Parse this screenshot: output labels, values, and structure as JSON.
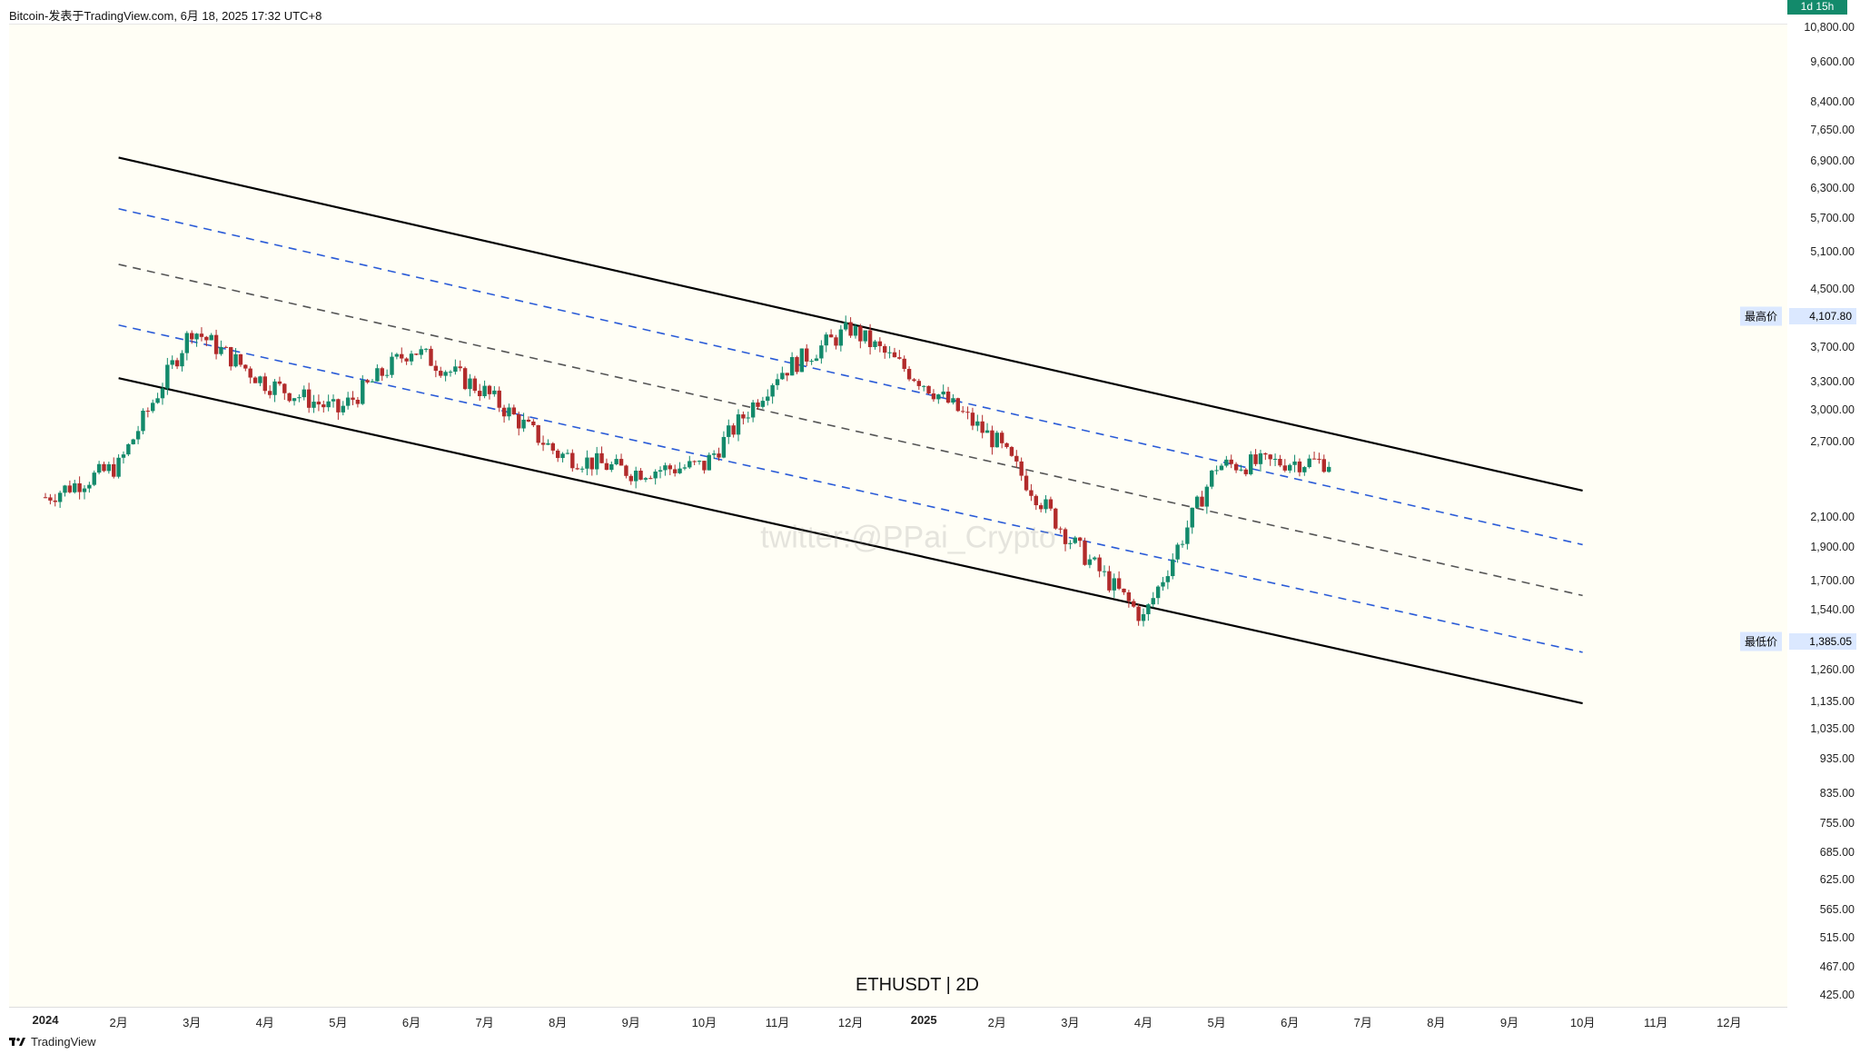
{
  "header": {
    "text": "Bitcoin-发表于TradingView.com, 6月 18, 2025 17:32 UTC+8"
  },
  "footer": {
    "logo_text": "TradingView"
  },
  "overlay": {
    "symbol": "ETHUSDT | 2D",
    "timestamp": "2025/6/18 17:32",
    "watermark": "twitter:@PPai_Crypto"
  },
  "colors": {
    "up": "#138a6b",
    "down": "#b22b2b",
    "channel": "#000000",
    "inner_band": "#2a5bd7",
    "median": "#555555",
    "background": "#fffef5"
  },
  "chart_data": {
    "type": "candlestick",
    "symbol": "ETHUSDT",
    "timeframe": "2D",
    "y_scale": "log",
    "y_ticks": [
      "10,800.00",
      "9,600.00",
      "8,400.00",
      "7,650.00",
      "6,900.00",
      "6,300.00",
      "5,700.00",
      "5,100.00",
      "4,500.00",
      "3,700.00",
      "3,300.00",
      "3,000.00",
      "2,700.00",
      "2,100.00",
      "1,900.00",
      "1,700.00",
      "1,540.00",
      "1,260.00",
      "1,135.00",
      "1,035.00",
      "935.00",
      "835.00",
      "755.00",
      "685.00",
      "625.00",
      "565.00",
      "515.00",
      "467.00",
      "425.00"
    ],
    "x_labels": [
      "2024",
      "2月",
      "3月",
      "4月",
      "5月",
      "6月",
      "7月",
      "8月",
      "9月",
      "10月",
      "11月",
      "12月",
      "2025",
      "2月",
      "3月",
      "4月",
      "5月",
      "6月",
      "7月",
      "8月",
      "9月",
      "10月",
      "11月",
      "12月"
    ],
    "x_major_labels": [
      "2024",
      "2025"
    ],
    "highest": {
      "label": "最高价",
      "value": "4,107.80"
    },
    "lowest": {
      "label": "最低价",
      "value": "1,385.05"
    },
    "current": {
      "value": "2,532.72",
      "countdown": "1d 15h"
    },
    "series": [
      {
        "label_date": "2024-01",
        "price": 2250
      },
      {
        "label_date": "2024-02",
        "price": 2500
      },
      {
        "label_date": "2024-03",
        "price": 3950
      },
      {
        "label_date": "2024-04",
        "price": 3300
      },
      {
        "label_date": "2024-05",
        "price": 3000
      },
      {
        "label_date": "2024-06",
        "price": 3700
      },
      {
        "label_date": "2024-07",
        "price": 3200
      },
      {
        "label_date": "2024-08",
        "price": 2600
      },
      {
        "label_date": "2024-09",
        "price": 2450
      },
      {
        "label_date": "2024-10",
        "price": 2500
      },
      {
        "label_date": "2024-11",
        "price": 3400
      },
      {
        "label_date": "2024-12",
        "price": 3950
      },
      {
        "label_date": "2025-01",
        "price": 3300
      },
      {
        "label_date": "2025-02",
        "price": 2700
      },
      {
        "label_date": "2025-03",
        "price": 1950
      },
      {
        "label_date": "2025-04",
        "price": 1500
      },
      {
        "label_date": "2025-05",
        "price": 2500
      },
      {
        "label_date": "2025-06",
        "price": 2532.72
      }
    ],
    "channel_lines": [
      {
        "name": "upper",
        "style": "solid",
        "start": [
          "2024-02",
          7000
        ],
        "end": [
          "2025-10",
          2300
        ]
      },
      {
        "name": "upper-inner",
        "style": "dashed",
        "start": [
          "2024-02",
          5900
        ],
        "end": [
          "2025-10",
          1920
        ]
      },
      {
        "name": "median",
        "style": "dashed",
        "start": [
          "2024-02",
          4900
        ],
        "end": [
          "2025-10",
          1620
        ]
      },
      {
        "name": "lower-inner",
        "style": "dashed",
        "start": [
          "2024-02",
          4000
        ],
        "end": [
          "2025-10",
          1340
        ]
      },
      {
        "name": "lower",
        "style": "solid",
        "start": [
          "2024-02",
          3350
        ],
        "end": [
          "2025-10",
          1130
        ]
      }
    ]
  }
}
